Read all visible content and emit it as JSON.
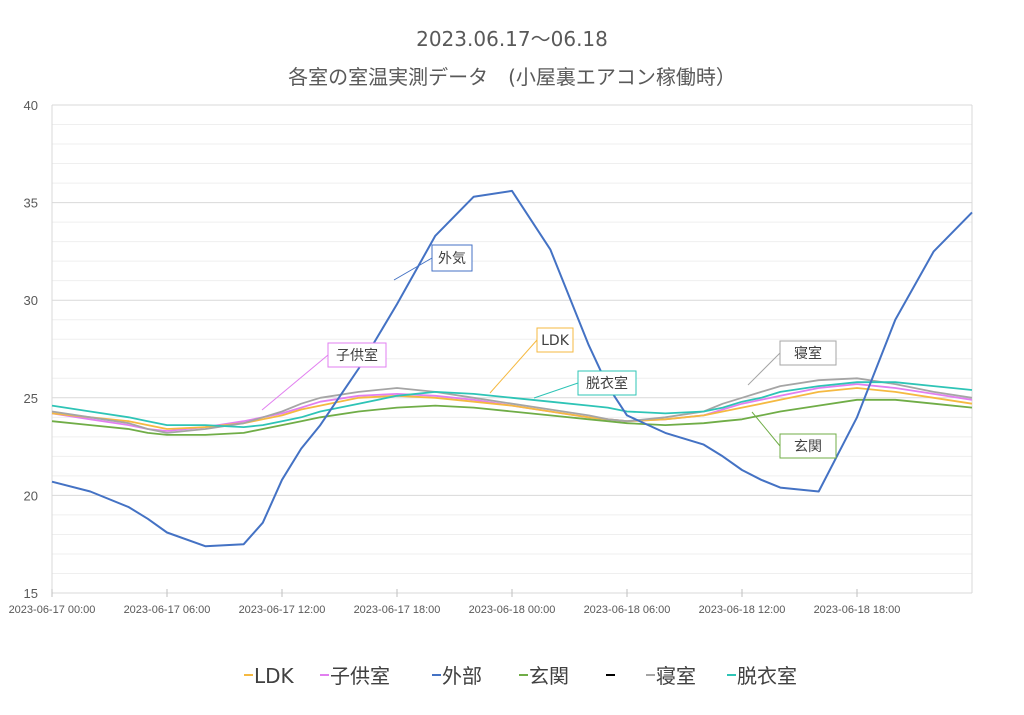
{
  "chart_data": {
    "type": "line",
    "title": "2023.06.17～06.18",
    "subtitle": "各室の室温実測データ　(小屋裏エアコン稼働時）",
    "ylim": [
      15,
      40
    ],
    "yticks": [
      "15",
      "20",
      "25",
      "30",
      "35",
      "40"
    ],
    "grid": true,
    "legend": "bottom",
    "xlim": [
      "2023-06-17 00:00",
      "2023-06-19 00:00"
    ],
    "xticks": [
      "2023-06-17 00:00",
      "2023-06-17 06:00",
      "2023-06-17 12:00",
      "2023-06-17 18:00",
      "2023-06-18 00:00",
      "2023-06-18 06:00",
      "2023-06-18 12:00",
      "2023-06-18 18:00"
    ],
    "hours": [
      0,
      2,
      4,
      5,
      6,
      8,
      10,
      11,
      12,
      13,
      14,
      16,
      18,
      20,
      22,
      24,
      26,
      28,
      29,
      30,
      32,
      34,
      35,
      36,
      37,
      38,
      40,
      42,
      44,
      46,
      48
    ],
    "series": [
      {
        "name": "LDK",
        "color": "#f5b941",
        "values": [
          24.2,
          24.0,
          23.8,
          23.6,
          23.4,
          23.5,
          23.7,
          23.9,
          24.1,
          24.4,
          24.6,
          25.0,
          25.1,
          25.0,
          24.8,
          24.6,
          24.3,
          24.0,
          23.9,
          23.8,
          23.9,
          24.1,
          24.3,
          24.5,
          24.7,
          24.9,
          25.3,
          25.5,
          25.3,
          25.0,
          24.7
        ]
      },
      {
        "name": "子供室",
        "color": "#e27ff0",
        "values": [
          24.2,
          23.9,
          23.6,
          23.4,
          23.3,
          23.5,
          23.8,
          24.0,
          24.2,
          24.5,
          24.8,
          25.1,
          25.2,
          25.1,
          24.9,
          24.6,
          24.3,
          24.0,
          23.9,
          23.8,
          23.9,
          24.1,
          24.4,
          24.7,
          24.9,
          25.1,
          25.5,
          25.7,
          25.5,
          25.2,
          24.9
        ]
      },
      {
        "name": "外部",
        "color": "#4472c4",
        "values": [
          20.7,
          20.2,
          19.4,
          18.8,
          18.1,
          17.4,
          17.5,
          18.6,
          20.8,
          22.4,
          23.6,
          26.5,
          29.8,
          33.3,
          35.3,
          35.6,
          32.6,
          27.7,
          25.6,
          24.1,
          23.2,
          22.6,
          22.0,
          21.3,
          20.8,
          20.4,
          20.2,
          24.0,
          29.0,
          32.5,
          34.5
        ]
      },
      {
        "name": "玄関",
        "color": "#70ad47",
        "values": [
          23.8,
          23.6,
          23.4,
          23.2,
          23.1,
          23.1,
          23.2,
          23.4,
          23.6,
          23.8,
          24.0,
          24.3,
          24.5,
          24.6,
          24.5,
          24.3,
          24.1,
          23.9,
          23.8,
          23.7,
          23.6,
          23.7,
          23.8,
          23.9,
          24.1,
          24.3,
          24.6,
          24.9,
          24.9,
          24.7,
          24.5
        ]
      },
      {
        "name": "寝室",
        "color": "#a5a5a5",
        "values": [
          24.3,
          24.0,
          23.7,
          23.4,
          23.2,
          23.4,
          23.7,
          24.0,
          24.3,
          24.7,
          25.0,
          25.3,
          25.5,
          25.3,
          25.0,
          24.7,
          24.4,
          24.1,
          23.9,
          23.8,
          24.0,
          24.3,
          24.7,
          25.0,
          25.3,
          25.6,
          25.9,
          26.0,
          25.7,
          25.3,
          25.0
        ]
      },
      {
        "name": "脱衣室",
        "color": "#2ec4b6",
        "values": [
          24.6,
          24.3,
          24.0,
          23.8,
          23.6,
          23.6,
          23.5,
          23.6,
          23.8,
          24.0,
          24.3,
          24.7,
          25.1,
          25.3,
          25.2,
          25.0,
          24.8,
          24.6,
          24.5,
          24.3,
          24.2,
          24.3,
          24.5,
          24.8,
          25.0,
          25.3,
          25.6,
          25.8,
          25.8,
          25.6,
          25.4
        ]
      }
    ],
    "annotations": [
      {
        "label": "外気",
        "series": "外部",
        "border": "#4472c4"
      },
      {
        "label": "LDK",
        "series": "LDK",
        "border": "#f5b941"
      },
      {
        "label": "子供室",
        "series": "子供室",
        "border": "#e27ff0"
      },
      {
        "label": "脱衣室",
        "series": "脱衣室",
        "border": "#2ec4b6"
      },
      {
        "label": "寝室",
        "series": "寝室",
        "border": "#a5a5a5"
      },
      {
        "label": "玄関",
        "series": "玄関",
        "border": "#70ad47"
      }
    ],
    "legend_entries": [
      {
        "label": "LDK",
        "color": "#f5b941"
      },
      {
        "label": "子供室",
        "color": "#e27ff0"
      },
      {
        "label": "外部",
        "color": "#4472c4"
      },
      {
        "label": "玄関",
        "color": "#70ad47"
      },
      {
        "label": "",
        "color": "#000000"
      },
      {
        "label": "寝室",
        "color": "#a5a5a5"
      },
      {
        "label": "脱衣室",
        "color": "#2ec4b6"
      }
    ]
  }
}
